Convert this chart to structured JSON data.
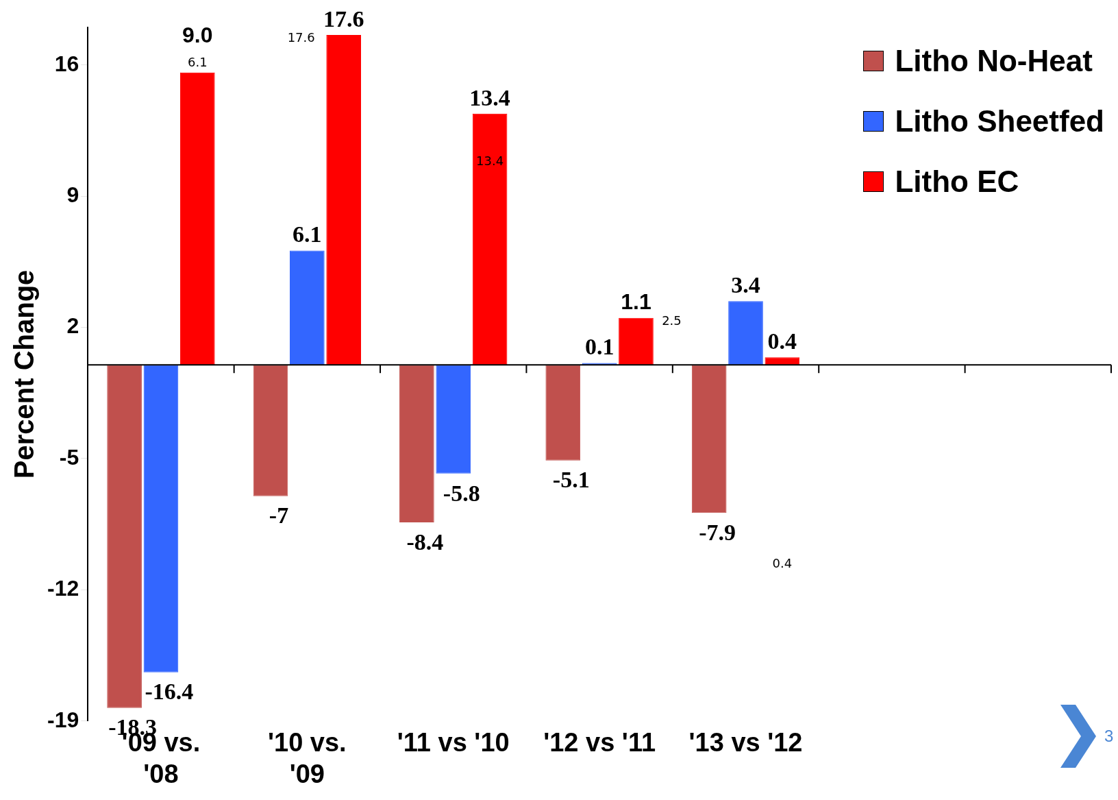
{
  "chart_data": {
    "type": "bar",
    "ylabel": "Percent Change",
    "categories": [
      "'09 vs. '08",
      "'10 vs. '09",
      "'11 vs '10",
      "'12 vs '11",
      "'13 vs '12",
      null,
      null
    ],
    "series": [
      {
        "name": "Litho No-Heat",
        "color": "#c0504d",
        "values": [
          -18.3,
          -7,
          -8.4,
          -5.1,
          -7.9,
          null,
          null
        ],
        "value_labels": [
          "-18.3",
          "-7",
          "-8.4",
          "-5.1",
          "-7.9",
          null,
          null
        ]
      },
      {
        "name": "Litho Sheetfed",
        "color": "#3366ff",
        "values": [
          -16.4,
          6.1,
          -5.8,
          0.1,
          3.4,
          null,
          null
        ],
        "value_labels": [
          "-16.4",
          "6.1",
          "-5.8",
          "0.1",
          "3.4",
          null,
          null
        ]
      },
      {
        "name": "Litho EC",
        "color": "#ff0000",
        "values": [
          15.6,
          17.6,
          13.4,
          2.5,
          0.4,
          null,
          null
        ],
        "value_labels": [
          null,
          "17.6",
          "13.4",
          null,
          "0.4",
          null,
          null
        ]
      }
    ],
    "ylim": [
      -19,
      18
    ],
    "yticks": [
      -19,
      -12,
      -5,
      2,
      9,
      16
    ],
    "grid": false,
    "legend": "top right",
    "annotations": [
      "9.0",
      "6.1",
      "17.6",
      "13.4",
      "1.1",
      "2.5",
      "0.4",
      "3"
    ]
  }
}
